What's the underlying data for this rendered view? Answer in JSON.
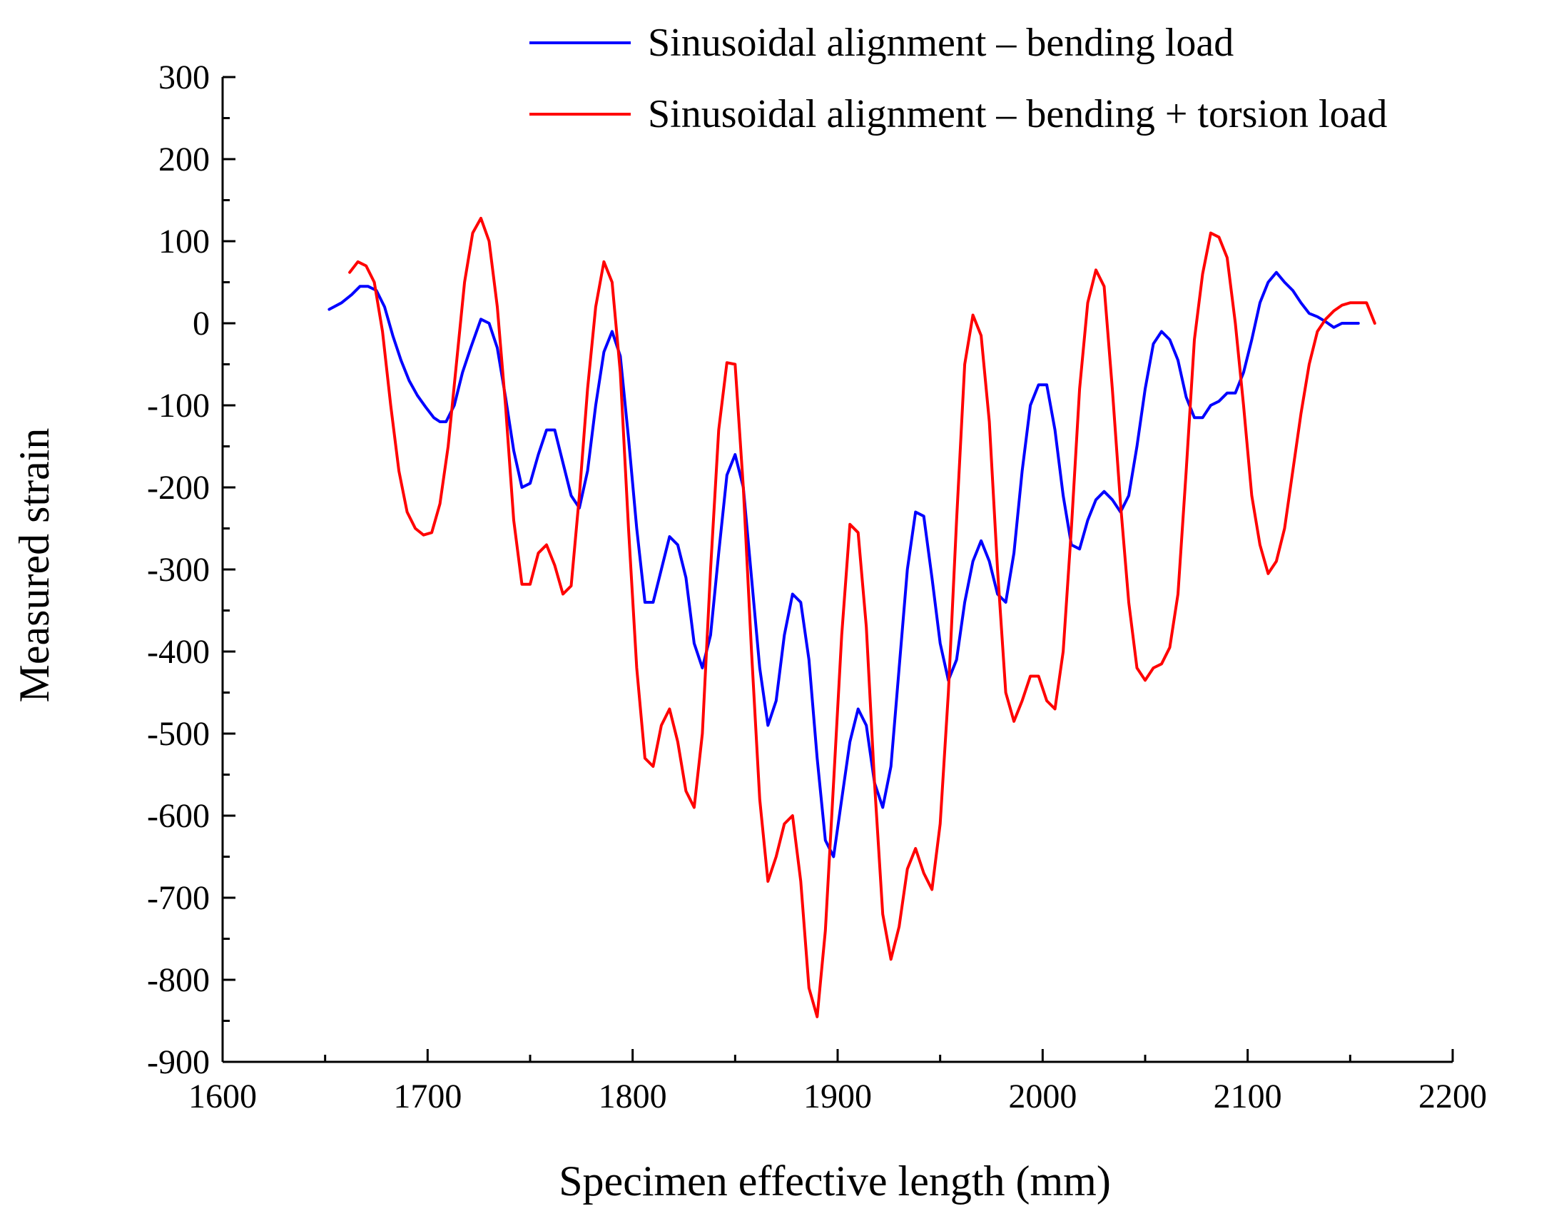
{
  "chart_data": {
    "type": "line",
    "title": "",
    "xlabel": "Specimen effective length (mm)",
    "ylabel": "Measured strain",
    "xlim": [
      1600,
      2200
    ],
    "ylim": [
      -900,
      300
    ],
    "xticks": [
      1600,
      1700,
      1800,
      1900,
      2000,
      2100,
      2200
    ],
    "yticks": [
      300,
      200,
      100,
      0,
      -100,
      -200,
      -300,
      -400,
      -500,
      -600,
      -700,
      -800,
      -900
    ],
    "grid": false,
    "legend_position": "top-right",
    "series": [
      {
        "name": "Sinusoidal alignment – bending  load",
        "color": "#0000ff",
        "x": [
          1652,
          1658,
          1663,
          1667,
          1671,
          1675,
          1679,
          1683,
          1687,
          1691,
          1695,
          1699,
          1703,
          1706,
          1709,
          1713,
          1717,
          1721,
          1726,
          1730,
          1734,
          1738,
          1742,
          1746,
          1750,
          1754,
          1758,
          1762,
          1766,
          1770,
          1774,
          1778,
          1782,
          1786,
          1790,
          1794,
          1798,
          1802,
          1806,
          1810,
          1814,
          1818,
          1822,
          1826,
          1830,
          1834,
          1838,
          1842,
          1846,
          1850,
          1854,
          1858,
          1862,
          1866,
          1870,
          1874,
          1878,
          1882,
          1886,
          1890,
          1894,
          1898,
          1902,
          1906,
          1910,
          1914,
          1918,
          1922,
          1926,
          1930,
          1934,
          1938,
          1942,
          1946,
          1950,
          1954,
          1958,
          1962,
          1966,
          1970,
          1974,
          1978,
          1982,
          1986,
          1990,
          1994,
          1998,
          2002,
          2006,
          2010,
          2014,
          2018,
          2022,
          2026,
          2030,
          2034,
          2038,
          2042,
          2046,
          2050,
          2054,
          2058,
          2062,
          2066,
          2070,
          2074,
          2078,
          2082,
          2086,
          2090,
          2094,
          2098,
          2102,
          2106,
          2110,
          2114,
          2118,
          2122,
          2126,
          2130,
          2134,
          2138,
          2142,
          2146,
          2150,
          2154
        ],
        "values": [
          17,
          25,
          35,
          45,
          45,
          40,
          20,
          -15,
          -45,
          -70,
          -88,
          -102,
          -115,
          -120,
          -120,
          -100,
          -60,
          -30,
          5,
          0,
          -30,
          -90,
          -155,
          -200,
          -195,
          -160,
          -130,
          -130,
          -170,
          -210,
          -225,
          -180,
          -100,
          -35,
          -10,
          -40,
          -140,
          -250,
          -340,
          -340,
          -300,
          -260,
          -270,
          -310,
          -390,
          -420,
          -380,
          -280,
          -185,
          -160,
          -200,
          -310,
          -420,
          -490,
          -460,
          -380,
          -330,
          -340,
          -410,
          -530,
          -630,
          -650,
          -580,
          -510,
          -470,
          -490,
          -560,
          -590,
          -540,
          -420,
          -300,
          -230,
          -235,
          -310,
          -390,
          -435,
          -410,
          -340,
          -290,
          -265,
          -290,
          -330,
          -340,
          -280,
          -180,
          -100,
          -75,
          -75,
          -130,
          -210,
          -270,
          -275,
          -240,
          -215,
          -205,
          -215,
          -230,
          -210,
          -150,
          -80,
          -25,
          -10,
          -20,
          -45,
          -90,
          -115,
          -115,
          -100,
          -95,
          -85,
          -85,
          -60,
          -20,
          25,
          50,
          62,
          50,
          40,
          25,
          12,
          8,
          2,
          -5,
          0,
          0,
          0
        ]
      },
      {
        "name": "Sinusoidal alignment – bending + torsion load",
        "color": "#ff0000",
        "x": [
          1662,
          1666,
          1670,
          1674,
          1678,
          1682,
          1686,
          1690,
          1694,
          1698,
          1702,
          1706,
          1710,
          1714,
          1718,
          1722,
          1726,
          1730,
          1734,
          1738,
          1742,
          1746,
          1750,
          1754,
          1758,
          1762,
          1766,
          1770,
          1774,
          1778,
          1782,
          1786,
          1790,
          1794,
          1798,
          1802,
          1806,
          1810,
          1814,
          1818,
          1822,
          1826,
          1830,
          1834,
          1838,
          1842,
          1846,
          1850,
          1854,
          1858,
          1862,
          1866,
          1870,
          1874,
          1878,
          1882,
          1886,
          1890,
          1894,
          1898,
          1902,
          1906,
          1910,
          1914,
          1918,
          1922,
          1926,
          1930,
          1934,
          1938,
          1942,
          1946,
          1950,
          1954,
          1958,
          1962,
          1966,
          1970,
          1974,
          1978,
          1982,
          1986,
          1990,
          1994,
          1998,
          2002,
          2006,
          2010,
          2014,
          2018,
          2022,
          2026,
          2030,
          2034,
          2038,
          2042,
          2046,
          2050,
          2054,
          2058,
          2062,
          2066,
          2070,
          2074,
          2078,
          2082,
          2086,
          2090,
          2094,
          2098,
          2102,
          2106,
          2110,
          2114,
          2118,
          2122,
          2126,
          2130,
          2134,
          2138,
          2142,
          2146,
          2150,
          2154,
          2158,
          2162
        ],
        "values": [
          62,
          75,
          70,
          50,
          -10,
          -100,
          -180,
          -230,
          -250,
          -258,
          -255,
          -220,
          -150,
          -50,
          50,
          110,
          128,
          100,
          20,
          -100,
          -240,
          -318,
          -318,
          -280,
          -270,
          -295,
          -330,
          -320,
          -210,
          -80,
          20,
          75,
          50,
          -60,
          -250,
          -420,
          -530,
          -540,
          -490,
          -470,
          -510,
          -570,
          -590,
          -500,
          -300,
          -130,
          -48,
          -50,
          -200,
          -400,
          -580,
          -680,
          -650,
          -610,
          -600,
          -680,
          -810,
          -845,
          -740,
          -560,
          -380,
          -245,
          -255,
          -370,
          -560,
          -720,
          -775,
          -735,
          -665,
          -640,
          -670,
          -690,
          -610,
          -450,
          -240,
          -50,
          10,
          -15,
          -120,
          -300,
          -450,
          -485,
          -460,
          -430,
          -430,
          -460,
          -470,
          -400,
          -250,
          -80,
          25,
          65,
          45,
          -80,
          -220,
          -340,
          -420,
          -435,
          -420,
          -415,
          -395,
          -330,
          -180,
          -20,
          60,
          110,
          105,
          80,
          0,
          -100,
          -210,
          -270,
          -305,
          -290,
          -250,
          -180,
          -110,
          -50,
          -10,
          5,
          15,
          22,
          25,
          25,
          25,
          0
        ]
      }
    ]
  }
}
